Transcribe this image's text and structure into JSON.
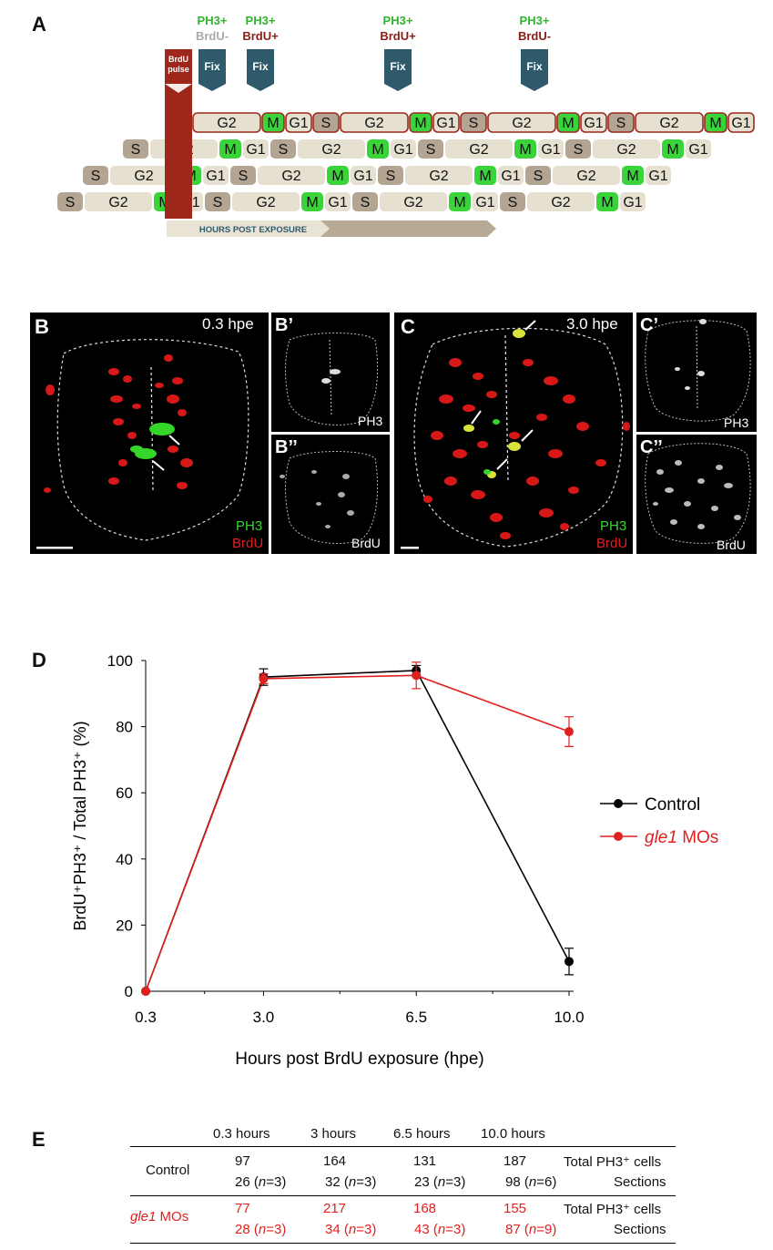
{
  "panelA": {
    "letter": "A",
    "pulse_label": "BrdU pulse",
    "fix_label": "Fix",
    "fix_markers": [
      {
        "top": "PH3+",
        "bottom": "BrdU-",
        "bottom_color": "#aaaaaa"
      },
      {
        "top": "PH3+",
        "bottom": "BrdU+",
        "bottom_color": "#8a1c17"
      },
      {
        "top": "PH3+",
        "bottom": "BrdU+",
        "bottom_color": "#8a1c17"
      },
      {
        "top": "PH3+",
        "bottom": "BrdU-",
        "bottom_color": "#8a1c17"
      }
    ],
    "phases": [
      "S",
      "G2",
      "M",
      "G1"
    ],
    "arrow_label": "HOURS POST EXPOSURE",
    "colors": {
      "s_phase": "#b3a591",
      "g_phase": "#e6e0d0",
      "m_phase": "#3ad43a",
      "pulse": "#9e271c",
      "fix": "#2f5a6b"
    }
  },
  "panelB": {
    "letter": "B",
    "time": "0.3 hpe",
    "marker1": "PH3",
    "marker2": "BrdU",
    "sub1": "B’",
    "sub1_label": "PH3",
    "sub2": "B’’",
    "sub2_label": "BrdU"
  },
  "panelC": {
    "letter": "C",
    "time": "3.0 hpe",
    "marker1": "PH3",
    "marker2": "BrdU",
    "sub1": "C’",
    "sub1_label": "PH3",
    "sub2": "C’’",
    "sub2_label": "BrdU"
  },
  "panelD": {
    "letter": "D"
  },
  "chart_data": {
    "type": "line",
    "x": [
      0.3,
      3.0,
      6.5,
      10.0
    ],
    "xticks": [
      "0.3",
      "3.0",
      "6.5",
      "10.0"
    ],
    "yticks": [
      "0",
      "20",
      "40",
      "60",
      "80",
      "100"
    ],
    "ylim": [
      0,
      100
    ],
    "xlabel": "Hours post BrdU exposure (hpe)",
    "ylabel": "BrdU⁺PH3⁺ / Total PH3⁺ (%)",
    "series": [
      {
        "name": "Control",
        "italic": "",
        "suffix": "Control",
        "color": "#000000",
        "values": [
          0,
          95,
          97,
          9
        ],
        "errors": [
          0,
          2.5,
          1.5,
          4
        ]
      },
      {
        "name": "gle1 MOs",
        "italic": "gle1",
        "suffix": " MOs",
        "color": "#e0201f",
        "values": [
          0,
          94.5,
          95.5,
          78.5
        ],
        "errors": [
          0,
          1.5,
          4,
          4.5
        ]
      }
    ]
  },
  "panelE": {
    "letter": "E",
    "headers": [
      "0.3 hours",
      "3 hours",
      "6.5 hours",
      "10.0 hours"
    ],
    "rows": [
      {
        "group": "Control",
        "group_italic": "",
        "cells": [
          "97",
          "164",
          "131",
          "187"
        ],
        "label": "Total PH3⁺ cells"
      },
      {
        "group": "",
        "group_italic": "",
        "cells": [
          "26",
          "32",
          "23",
          "98"
        ],
        "n": [
          "3",
          "3",
          "3",
          "6"
        ],
        "label": "Sections"
      },
      {
        "group": " MOs",
        "group_italic": "gle1",
        "cells": [
          "77",
          "217",
          "168",
          "155"
        ],
        "label": "Total PH3⁺ cells"
      },
      {
        "group": "",
        "group_italic": "",
        "cells": [
          "28",
          "34",
          "43",
          "87"
        ],
        "n": [
          "3",
          "3",
          "3",
          "9"
        ],
        "label": "Sections"
      }
    ]
  }
}
